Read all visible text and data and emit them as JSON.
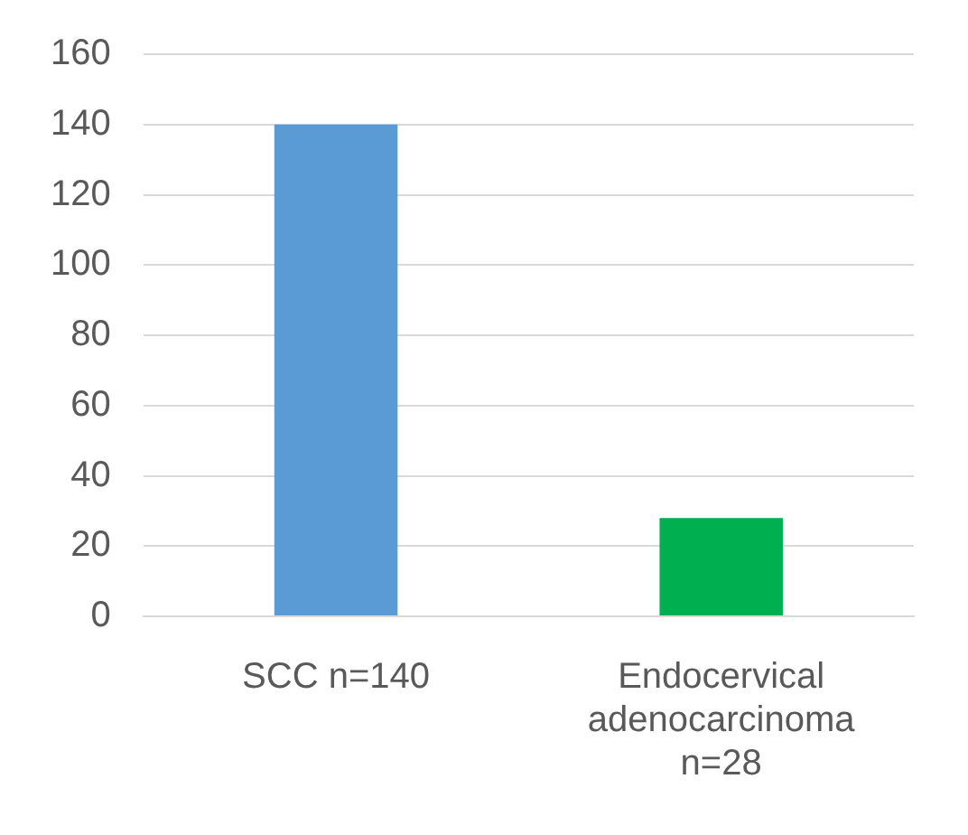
{
  "chart_data": {
    "type": "bar",
    "categories": [
      "SCC n=140",
      "Endocervical adenocarcinoma n=28"
    ],
    "values": [
      140,
      28
    ],
    "colors": [
      "#5b9bd5",
      "#00b050"
    ],
    "ylim": [
      0,
      160
    ],
    "yticks": [
      0,
      20,
      40,
      60,
      80,
      100,
      120,
      140,
      160
    ],
    "grid": "y",
    "legend": false
  }
}
